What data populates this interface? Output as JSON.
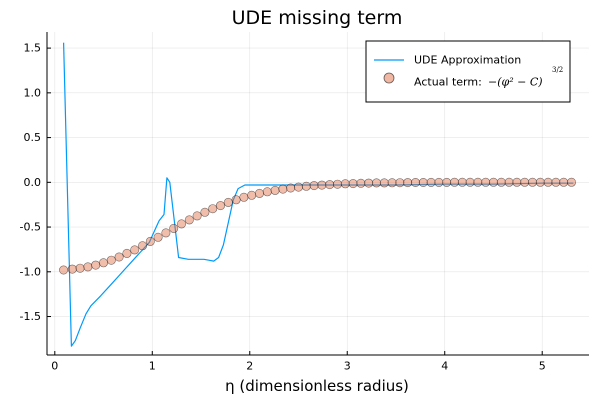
{
  "chart_data": {
    "type": "line",
    "title": "UDE missing term",
    "xlabel": "η (dimensionless radius)",
    "ylabel": "",
    "xlim": [
      -0.08,
      5.48
    ],
    "ylim": [
      -1.93,
      1.68
    ],
    "xticks": [
      0,
      1,
      2,
      3,
      4,
      5
    ],
    "xtick_labels": [
      "0",
      "1",
      "2",
      "3",
      "4",
      "5"
    ],
    "yticks": [
      1.5,
      1.0,
      0.5,
      0.0,
      -0.5,
      -1.0,
      -1.5
    ],
    "ytick_labels": [
      "1.5",
      "1.0",
      "0.5",
      "0.0",
      "-0.5",
      "-1.0",
      "-1.5"
    ],
    "grid": true,
    "legend_position": "top-right",
    "series": [
      {
        "name": "UDE Approximation",
        "kind": "line",
        "color": "#009AFA",
        "x": [
          0.09,
          0.17,
          0.21,
          0.26,
          0.32,
          0.37,
          0.47,
          0.57,
          0.67,
          0.77,
          0.87,
          0.97,
          1.02,
          1.07,
          1.12,
          1.15,
          1.18,
          1.27,
          1.37,
          1.47,
          1.53,
          1.58,
          1.63,
          1.68,
          1.73,
          1.78,
          1.83,
          1.88,
          1.95,
          2.1,
          2.5,
          3.0,
          3.5,
          4.0,
          4.5,
          5.0,
          5.32
        ],
        "y": [
          1.56,
          -1.83,
          -1.77,
          -1.63,
          -1.47,
          -1.38,
          -1.27,
          -1.15,
          -1.03,
          -0.91,
          -0.79,
          -0.67,
          -0.55,
          -0.43,
          -0.36,
          0.05,
          0.0,
          -0.84,
          -0.86,
          -0.86,
          -0.86,
          -0.87,
          -0.88,
          -0.84,
          -0.7,
          -0.45,
          -0.2,
          -0.07,
          -0.03,
          -0.03,
          -0.03,
          -0.03,
          -0.03,
          -0.02,
          -0.02,
          -0.01,
          -0.01
        ]
      },
      {
        "name": "Actual term: −(φ² − C)^{3/2}",
        "kind": "scatter",
        "color": "#E26F46",
        "x": [
          0.09,
          0.18,
          0.26,
          0.34,
          0.42,
          0.5,
          0.58,
          0.66,
          0.74,
          0.82,
          0.9,
          0.98,
          1.06,
          1.14,
          1.22,
          1.3,
          1.38,
          1.46,
          1.54,
          1.62,
          1.7,
          1.78,
          1.86,
          1.94,
          2.02,
          2.1,
          2.18,
          2.26,
          2.34,
          2.42,
          2.5,
          2.58,
          2.66,
          2.74,
          2.82,
          2.9,
          2.98,
          3.06,
          3.14,
          3.22,
          3.3,
          3.38,
          3.46,
          3.54,
          3.62,
          3.7,
          3.78,
          3.86,
          3.94,
          4.02,
          4.1,
          4.18,
          4.26,
          4.34,
          4.42,
          4.5,
          4.58,
          4.66,
          4.74,
          4.82,
          4.9,
          4.98,
          5.06,
          5.14,
          5.22,
          5.3
        ],
        "y": [
          -0.98,
          -0.97,
          -0.96,
          -0.945,
          -0.925,
          -0.9,
          -0.87,
          -0.835,
          -0.795,
          -0.755,
          -0.71,
          -0.66,
          -0.615,
          -0.565,
          -0.515,
          -0.465,
          -0.42,
          -0.375,
          -0.335,
          -0.295,
          -0.26,
          -0.225,
          -0.195,
          -0.168,
          -0.145,
          -0.124,
          -0.106,
          -0.09,
          -0.076,
          -0.064,
          -0.054,
          -0.045,
          -0.037,
          -0.031,
          -0.026,
          -0.021,
          -0.017,
          -0.014,
          -0.011,
          -0.009,
          -0.007,
          -0.006,
          -0.005,
          -0.004,
          -0.003,
          -0.002,
          -0.002,
          -0.001,
          -0.001,
          -0.001,
          0.0,
          0.0,
          0.0,
          0.0,
          0.0,
          0.0,
          0.0,
          0.0,
          0.0,
          0.0,
          0.0,
          0.0,
          0.0,
          0.0,
          0.0,
          0.0
        ]
      }
    ]
  },
  "legend": {
    "line_label": "UDE Approximation",
    "marker_label_prefix": "Actual term:",
    "marker_formula": "−(φ² − C)",
    "marker_exponent": "3/2"
  }
}
